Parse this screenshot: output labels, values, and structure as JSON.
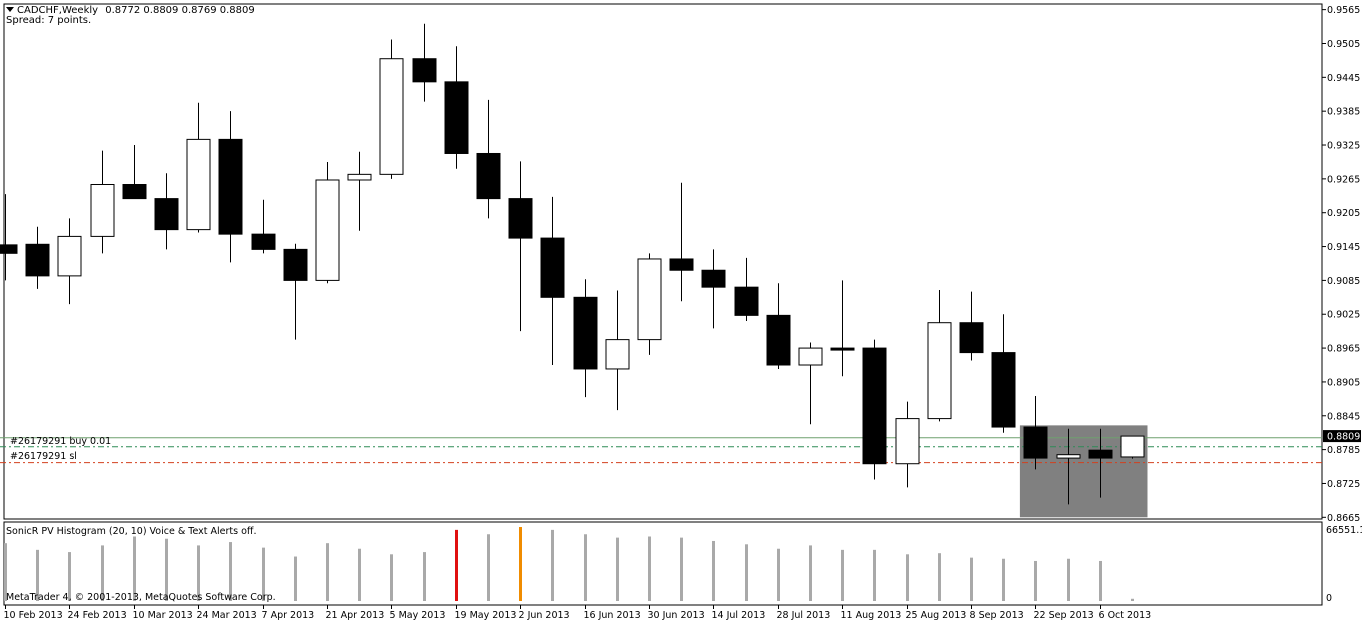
{
  "header": {
    "symbol": "CADCHF,Weekly",
    "ohlc": "0.8772 0.8809 0.8769 0.8809",
    "spread": "Spread: 7 points."
  },
  "orders": {
    "buy_label": "#26179291 buy 0.01",
    "sl_label": "#26179291 sl"
  },
  "indicator": {
    "title": "SonicR PV Histogram  (20, 10)    Voice & Text Alerts off.",
    "max_label": "66551.1",
    "zero_label": "0"
  },
  "copyright": "MetaTrader 4, © 2001-2013, MetaQuotes Software Corp.",
  "colors": {
    "bull": "#ffffff",
    "bear": "#000000",
    "buy_line": "#2e8b57",
    "sl_line": "#d2401e",
    "highlight_box": "#808080",
    "hist_normal": "#a9a9a9",
    "hist_red": "#e01010",
    "hist_orange": "#f08c00"
  },
  "chart_data": {
    "type": "candlestick",
    "symbol": "CADCHF",
    "timeframe": "Weekly",
    "y_ticks": [
      "0.9565",
      "0.9505",
      "0.9445",
      "0.9385",
      "0.9325",
      "0.9265",
      "0.9205",
      "0.9145",
      "0.9085",
      "0.9025",
      "0.8965",
      "0.8905",
      "0.8845",
      "0.8785",
      "0.8725",
      "0.8665"
    ],
    "ylim": [
      0.8662,
      0.9575
    ],
    "current_price": "0.8809",
    "buy_level": 0.879,
    "sl_level": 0.8762,
    "x_labels": [
      {
        "index": 0,
        "text": "10 Feb 2013"
      },
      {
        "index": 2,
        "text": "24 Feb 2013"
      },
      {
        "index": 4,
        "text": "10 Mar 2013"
      },
      {
        "index": 6,
        "text": "24 Mar 2013"
      },
      {
        "index": 8,
        "text": "7 Apr 2013"
      },
      {
        "index": 10,
        "text": "21 Apr 2013"
      },
      {
        "index": 12,
        "text": "5 May 2013"
      },
      {
        "index": 14,
        "text": "19 May 2013"
      },
      {
        "index": 16,
        "text": "2 Jun 2013"
      },
      {
        "index": 18,
        "text": "16 Jun 2013"
      },
      {
        "index": 20,
        "text": "30 Jun 2013"
      },
      {
        "index": 22,
        "text": "14 Jul 2013"
      },
      {
        "index": 24,
        "text": "28 Jul 2013"
      },
      {
        "index": 26,
        "text": "11 Aug 2013"
      },
      {
        "index": 28,
        "text": "25 Aug 2013"
      },
      {
        "index": 30,
        "text": "8 Sep 2013"
      },
      {
        "index": 32,
        "text": "22 Sep 2013"
      },
      {
        "index": 34,
        "text": "6 Oct 2013"
      }
    ],
    "candles": [
      {
        "o": 0.9148,
        "h": 0.9238,
        "l": 0.9085,
        "c": 0.9133
      },
      {
        "o": 0.9149,
        "h": 0.918,
        "l": 0.907,
        "c": 0.9093
      },
      {
        "o": 0.9093,
        "h": 0.9195,
        "l": 0.9043,
        "c": 0.9163
      },
      {
        "o": 0.9163,
        "h": 0.9315,
        "l": 0.9133,
        "c": 0.9255
      },
      {
        "o": 0.9255,
        "h": 0.9325,
        "l": 0.923,
        "c": 0.923
      },
      {
        "o": 0.923,
        "h": 0.9275,
        "l": 0.914,
        "c": 0.9175
      },
      {
        "o": 0.9175,
        "h": 0.94,
        "l": 0.917,
        "c": 0.9335
      },
      {
        "o": 0.9335,
        "h": 0.9385,
        "l": 0.9117,
        "c": 0.9167
      },
      {
        "o": 0.9167,
        "h": 0.9228,
        "l": 0.9133,
        "c": 0.914
      },
      {
        "o": 0.914,
        "h": 0.915,
        "l": 0.898,
        "c": 0.9085
      },
      {
        "o": 0.9085,
        "h": 0.9295,
        "l": 0.908,
        "c": 0.9263
      },
      {
        "o": 0.9263,
        "h": 0.9313,
        "l": 0.9173,
        "c": 0.9273
      },
      {
        "o": 0.9273,
        "h": 0.9512,
        "l": 0.9265,
        "c": 0.9478
      },
      {
        "o": 0.9478,
        "h": 0.954,
        "l": 0.9402,
        "c": 0.9437
      },
      {
        "o": 0.9437,
        "h": 0.95,
        "l": 0.9283,
        "c": 0.931
      },
      {
        "o": 0.931,
        "h": 0.9405,
        "l": 0.9195,
        "c": 0.923
      },
      {
        "o": 0.923,
        "h": 0.9296,
        "l": 0.8995,
        "c": 0.916
      },
      {
        "o": 0.916,
        "h": 0.9233,
        "l": 0.8935,
        "c": 0.9055
      },
      {
        "o": 0.9055,
        "h": 0.9087,
        "l": 0.8878,
        "c": 0.8928
      },
      {
        "o": 0.8928,
        "h": 0.9067,
        "l": 0.8855,
        "c": 0.898
      },
      {
        "o": 0.898,
        "h": 0.9133,
        "l": 0.8953,
        "c": 0.9123
      },
      {
        "o": 0.9123,
        "h": 0.9258,
        "l": 0.9048,
        "c": 0.9103
      },
      {
        "o": 0.9103,
        "h": 0.914,
        "l": 0.9,
        "c": 0.9073
      },
      {
        "o": 0.9073,
        "h": 0.9125,
        "l": 0.9013,
        "c": 0.9023
      },
      {
        "o": 0.9023,
        "h": 0.908,
        "l": 0.8928,
        "c": 0.8935
      },
      {
        "o": 0.8935,
        "h": 0.8975,
        "l": 0.883,
        "c": 0.8965
      },
      {
        "o": 0.8965,
        "h": 0.9085,
        "l": 0.8915,
        "c": 0.8965
      },
      {
        "o": 0.8965,
        "h": 0.898,
        "l": 0.8732,
        "c": 0.876
      },
      {
        "o": 0.876,
        "h": 0.887,
        "l": 0.8718,
        "c": 0.884
      },
      {
        "o": 0.884,
        "h": 0.9068,
        "l": 0.8835,
        "c": 0.901
      },
      {
        "o": 0.901,
        "h": 0.9065,
        "l": 0.8943,
        "c": 0.8957
      },
      {
        "o": 0.8957,
        "h": 0.9025,
        "l": 0.8815,
        "c": 0.8825
      },
      {
        "o": 0.8825,
        "h": 0.888,
        "l": 0.875,
        "c": 0.877
      },
      {
        "o": 0.877,
        "h": 0.8822,
        "l": 0.8688,
        "c": 0.8776
      },
      {
        "o": 0.8784,
        "h": 0.8822,
        "l": 0.87,
        "c": 0.877
      },
      {
        "o": 0.8772,
        "h": 0.8809,
        "l": 0.8769,
        "c": 0.8809
      }
    ],
    "highlight_range": {
      "from_index": 32,
      "to_index": 35,
      "price_low": 0.8665,
      "price_high": 0.8828
    },
    "volume": {
      "ylim": [
        0,
        66551.1
      ],
      "colors": [
        "n",
        "n",
        "n",
        "n",
        "n",
        "n",
        "n",
        "n",
        "n",
        "n",
        "n",
        "n",
        "n",
        "n",
        "r",
        "n",
        "o",
        "n",
        "n",
        "n",
        "n",
        "n",
        "n",
        "n",
        "n",
        "n",
        "n",
        "n",
        "n",
        "n",
        "n",
        "n",
        "n",
        "n",
        "n",
        "n"
      ],
      "values": [
        52000,
        46000,
        44000,
        50000,
        58000,
        56000,
        50000,
        53000,
        48000,
        40000,
        52000,
        47000,
        42000,
        44000,
        64000,
        60000,
        66551,
        64000,
        60000,
        57000,
        58000,
        57000,
        54000,
        51000,
        47000,
        50000,
        46000,
        46000,
        42000,
        43000,
        39000,
        38000,
        36000,
        38000,
        36000,
        2000
      ]
    }
  }
}
